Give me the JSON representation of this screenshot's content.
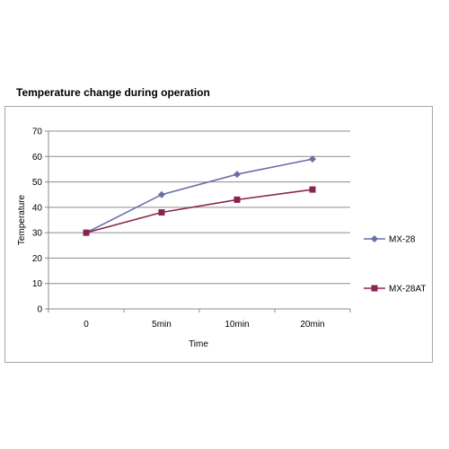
{
  "chart_data": {
    "type": "line",
    "title": "Temperature change during operation",
    "xlabel": "Time",
    "ylabel": "Temperature",
    "categories": [
      "0",
      "5min",
      "10min",
      "20min"
    ],
    "ylim": [
      0,
      70
    ],
    "yticks": [
      0,
      10,
      20,
      30,
      40,
      50,
      60,
      70
    ],
    "grid": true,
    "legend": "right",
    "series": [
      {
        "name": "MX-28",
        "values": [
          30,
          45,
          53,
          59
        ],
        "color": "#6a6fa6",
        "marker": "diamond"
      },
      {
        "name": "MX-28AT",
        "values": [
          30,
          38,
          43,
          47
        ],
        "color": "#8b2350",
        "marker": "square"
      }
    ]
  }
}
